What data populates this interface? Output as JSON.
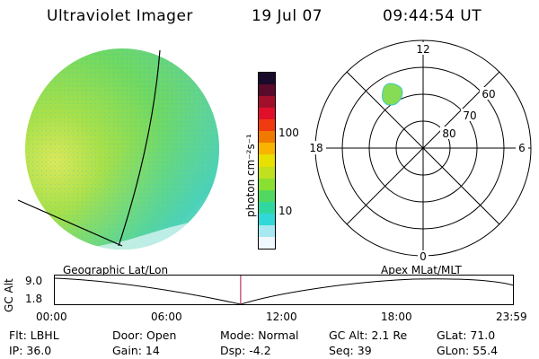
{
  "header": {
    "title": "Ultraviolet Imager",
    "date": "19 Jul 07",
    "time": "09:44:54 UT"
  },
  "colorbar": {
    "unit_label": "photon cm⁻²s⁻¹",
    "ticks": [
      "100",
      "10"
    ],
    "colors": [
      "#1a0a2a",
      "#5a0a2a",
      "#a0102a",
      "#e0102a",
      "#f03a10",
      "#f07a00",
      "#f8b400",
      "#e8e000",
      "#c0e020",
      "#8ae030",
      "#52d860",
      "#30d8a0",
      "#30d8d8",
      "#a8e8f0",
      "#f0f8ff"
    ]
  },
  "polar": {
    "labels": {
      "top": "12",
      "bottom": "0",
      "left": "18",
      "right": "6"
    },
    "rings": [
      "60",
      "70",
      "80"
    ]
  },
  "timeline": {
    "top_left_label": "Geographic Lat/Lon",
    "top_right_label": "Apex  MLat/MLT",
    "y_axis_label": "GC Alt",
    "y_ticks": [
      "9.0",
      "1.8"
    ],
    "x_ticks": [
      "00:00",
      "06:00",
      "12:00",
      "18:00",
      "23:59"
    ],
    "marker_time_fraction": 0.406
  },
  "info": {
    "row1": {
      "flt": "Flt: LBHL",
      "door": "Door: Open",
      "mode": "Mode: Normal",
      "gc_alt": "GC Alt: 2.1 Re",
      "glat": "GLat:  71.0"
    },
    "row2": {
      "ip": "IP: 36.0",
      "gain": "Gain: 14",
      "dsp": "Dsp:    -4.2",
      "seq": "Seq: 39",
      "glon": "GLon:  55.4"
    }
  },
  "colors": {
    "marker": "#c0306a",
    "disk_base": "#7ad85a"
  }
}
